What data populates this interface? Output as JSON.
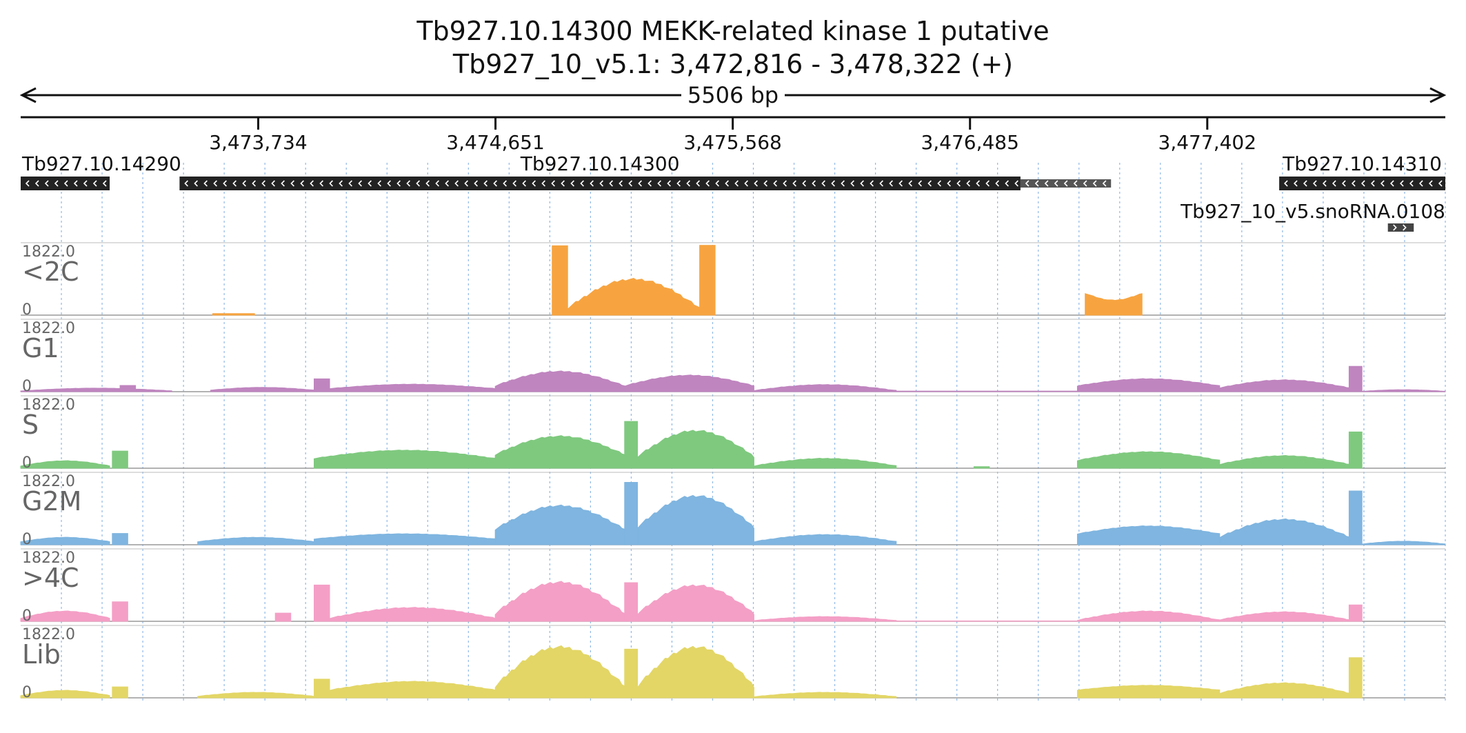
{
  "chart_data": {
    "type": "area",
    "title": "Tb927.10.14300  MEKK-related kinase 1  putative",
    "subtitle": "Tb927_10_v5.1: 3,472,816 - 3,478,322 (+)",
    "span_label": "5506 bp",
    "xlim": [
      3472816,
      3478322
    ],
    "ticks": [
      {
        "pos": 3473734,
        "label": "3,473,734"
      },
      {
        "pos": 3474651,
        "label": "3,474,651"
      },
      {
        "pos": 3475568,
        "label": "3,475,568"
      },
      {
        "pos": 3476485,
        "label": "3,476,485"
      },
      {
        "pos": 3477402,
        "label": "3,477,402"
      }
    ],
    "genes": [
      {
        "label": "Tb927.10.14290",
        "start": 3472816,
        "end": 3473160,
        "strand": "-",
        "row": 0,
        "label_anchor": "start",
        "color": "#222222"
      },
      {
        "label": "Tb927.10.14300",
        "start": 3473430,
        "end": 3476680,
        "strand": "-",
        "row": 0,
        "label_anchor": "middle",
        "color": "#222222"
      },
      {
        "label": "",
        "start": 3476680,
        "end": 3477030,
        "strand": "-",
        "row": 0,
        "label_anchor": "middle",
        "color": "#555555",
        "thin": true
      },
      {
        "label": "Tb927.10.14310",
        "start": 3477680,
        "end": 3478322,
        "strand": "-",
        "row": 0,
        "label_anchor": "middle",
        "color": "#222222"
      },
      {
        "label": "Tb927_10_v5.snoRNA.0108",
        "start": 3478100,
        "end": 3478200,
        "strand": "+",
        "row": 1,
        "label_anchor": "end",
        "color": "#444444"
      }
    ],
    "ylim": [
      0,
      1822
    ],
    "tracks": [
      {
        "name": "<2C",
        "max_label": "1822.0",
        "zero_label": "0",
        "color": "#f7a440",
        "segments": [
          {
            "start": 3473558,
            "end": 3473720,
            "shape": "flat",
            "low": 40,
            "high": 40
          },
          {
            "start": 3474870,
            "end": 3474930,
            "shape": "flat",
            "low": 1780,
            "high": 1780
          },
          {
            "start": 3474930,
            "end": 3475440,
            "shape": "arch",
            "low": 180,
            "high": 920
          },
          {
            "start": 3475440,
            "end": 3475500,
            "shape": "flat",
            "low": 1790,
            "high": 1790
          },
          {
            "start": 3476930,
            "end": 3477150,
            "shape": "notch",
            "low": 340,
            "high": 560
          }
        ]
      },
      {
        "name": "G1",
        "max_label": "1822.0",
        "zero_label": "0",
        "color": "#bf85bf",
        "segments": [
          {
            "start": 3472816,
            "end": 3473400,
            "shape": "arch",
            "low": 20,
            "high": 90
          },
          {
            "start": 3473200,
            "end": 3473260,
            "shape": "flat",
            "low": 160,
            "high": 160
          },
          {
            "start": 3473550,
            "end": 3473950,
            "shape": "arch",
            "low": 40,
            "high": 110
          },
          {
            "start": 3473950,
            "end": 3474010,
            "shape": "flat",
            "low": 330,
            "high": 330
          },
          {
            "start": 3474010,
            "end": 3474650,
            "shape": "arch",
            "low": 80,
            "high": 190
          },
          {
            "start": 3474650,
            "end": 3475150,
            "shape": "arch",
            "low": 150,
            "high": 520
          },
          {
            "start": 3475150,
            "end": 3475650,
            "shape": "arch",
            "low": 150,
            "high": 420
          },
          {
            "start": 3475650,
            "end": 3476200,
            "shape": "arch",
            "low": 30,
            "high": 180
          },
          {
            "start": 3476200,
            "end": 3476900,
            "shape": "flat",
            "low": 15,
            "high": 15
          },
          {
            "start": 3476900,
            "end": 3477450,
            "shape": "arch",
            "low": 150,
            "high": 330
          },
          {
            "start": 3477450,
            "end": 3477950,
            "shape": "arch",
            "low": 100,
            "high": 300
          },
          {
            "start": 3477950,
            "end": 3478000,
            "shape": "flat",
            "low": 650,
            "high": 650
          },
          {
            "start": 3478000,
            "end": 3478322,
            "shape": "arch",
            "low": 10,
            "high": 50
          }
        ]
      },
      {
        "name": "S",
        "max_label": "1822.0",
        "zero_label": "0",
        "color": "#7fc97f",
        "segments": [
          {
            "start": 3472816,
            "end": 3473160,
            "shape": "arch",
            "low": 60,
            "high": 190
          },
          {
            "start": 3473170,
            "end": 3473230,
            "shape": "flat",
            "low": 440,
            "high": 440
          },
          {
            "start": 3473950,
            "end": 3474650,
            "shape": "arch",
            "low": 250,
            "high": 460
          },
          {
            "start": 3474650,
            "end": 3475150,
            "shape": "arch",
            "low": 350,
            "high": 820
          },
          {
            "start": 3475150,
            "end": 3475200,
            "shape": "flat",
            "low": 1200,
            "high": 1200
          },
          {
            "start": 3475200,
            "end": 3475650,
            "shape": "arch",
            "low": 300,
            "high": 960
          },
          {
            "start": 3475650,
            "end": 3476200,
            "shape": "arch",
            "low": 60,
            "high": 250
          },
          {
            "start": 3476500,
            "end": 3476560,
            "shape": "flat",
            "low": 40,
            "high": 40
          },
          {
            "start": 3476900,
            "end": 3477450,
            "shape": "arch",
            "low": 200,
            "high": 420
          },
          {
            "start": 3477450,
            "end": 3477950,
            "shape": "arch",
            "low": 100,
            "high": 320
          },
          {
            "start": 3477950,
            "end": 3478000,
            "shape": "flat",
            "low": 930,
            "high": 930
          }
        ]
      },
      {
        "name": "G2M",
        "max_label": "1822.0",
        "zero_label": "0",
        "color": "#7fb5e0",
        "segments": [
          {
            "start": 3472816,
            "end": 3473160,
            "shape": "arch",
            "low": 80,
            "high": 190
          },
          {
            "start": 3473170,
            "end": 3473230,
            "shape": "flat",
            "low": 290,
            "high": 290
          },
          {
            "start": 3473500,
            "end": 3473950,
            "shape": "arch",
            "low": 80,
            "high": 190
          },
          {
            "start": 3473950,
            "end": 3474650,
            "shape": "arch",
            "low": 150,
            "high": 280
          },
          {
            "start": 3474650,
            "end": 3475150,
            "shape": "arch",
            "low": 400,
            "high": 1000
          },
          {
            "start": 3475150,
            "end": 3475200,
            "shape": "flat",
            "low": 1600,
            "high": 1600
          },
          {
            "start": 3475200,
            "end": 3475650,
            "shape": "arch",
            "low": 450,
            "high": 1250
          },
          {
            "start": 3475650,
            "end": 3476200,
            "shape": "arch",
            "low": 80,
            "high": 260
          },
          {
            "start": 3476900,
            "end": 3477450,
            "shape": "arch",
            "low": 280,
            "high": 480
          },
          {
            "start": 3477450,
            "end": 3477950,
            "shape": "arch",
            "low": 200,
            "high": 650
          },
          {
            "start": 3477950,
            "end": 3478000,
            "shape": "flat",
            "low": 1380,
            "high": 1380
          },
          {
            "start": 3478000,
            "end": 3478322,
            "shape": "arch",
            "low": 20,
            "high": 90
          }
        ]
      },
      {
        "name": ">4C",
        "max_label": "1822.0",
        "zero_label": "0",
        "color": "#f49fc6",
        "segments": [
          {
            "start": 3472816,
            "end": 3473160,
            "shape": "arch",
            "low": 80,
            "high": 260
          },
          {
            "start": 3473170,
            "end": 3473230,
            "shape": "flat",
            "low": 500,
            "high": 500
          },
          {
            "start": 3473800,
            "end": 3473860,
            "shape": "flat",
            "low": 210,
            "high": 210
          },
          {
            "start": 3473950,
            "end": 3474010,
            "shape": "flat",
            "low": 930,
            "high": 930
          },
          {
            "start": 3474010,
            "end": 3474650,
            "shape": "arch",
            "low": 80,
            "high": 350
          },
          {
            "start": 3474650,
            "end": 3475150,
            "shape": "arch",
            "low": 200,
            "high": 1000
          },
          {
            "start": 3475150,
            "end": 3475200,
            "shape": "flat",
            "low": 990,
            "high": 990
          },
          {
            "start": 3475200,
            "end": 3475650,
            "shape": "arch",
            "low": 200,
            "high": 920
          },
          {
            "start": 3475650,
            "end": 3476200,
            "shape": "arch",
            "low": 20,
            "high": 120
          },
          {
            "start": 3476200,
            "end": 3476900,
            "shape": "flat",
            "low": 10,
            "high": 10
          },
          {
            "start": 3476900,
            "end": 3477450,
            "shape": "arch",
            "low": 30,
            "high": 260
          },
          {
            "start": 3477450,
            "end": 3477950,
            "shape": "arch",
            "low": 40,
            "high": 240
          },
          {
            "start": 3477950,
            "end": 3478000,
            "shape": "flat",
            "low": 420,
            "high": 420
          }
        ]
      },
      {
        "name": "Lib",
        "max_label": "1822.0",
        "zero_label": "0",
        "color": "#e3d666",
        "segments": [
          {
            "start": 3472816,
            "end": 3473160,
            "shape": "arch",
            "low": 60,
            "high": 190
          },
          {
            "start": 3473170,
            "end": 3473230,
            "shape": "flat",
            "low": 280,
            "high": 280
          },
          {
            "start": 3473500,
            "end": 3473950,
            "shape": "arch",
            "low": 40,
            "high": 140
          },
          {
            "start": 3473950,
            "end": 3474010,
            "shape": "flat",
            "low": 480,
            "high": 480
          },
          {
            "start": 3474010,
            "end": 3474650,
            "shape": "arch",
            "low": 200,
            "high": 420
          },
          {
            "start": 3474650,
            "end": 3475150,
            "shape": "arch",
            "low": 300,
            "high": 1300
          },
          {
            "start": 3475150,
            "end": 3475200,
            "shape": "flat",
            "low": 1250,
            "high": 1250
          },
          {
            "start": 3475200,
            "end": 3475650,
            "shape": "arch",
            "low": 300,
            "high": 1300
          },
          {
            "start": 3475650,
            "end": 3476200,
            "shape": "arch",
            "low": 30,
            "high": 140
          },
          {
            "start": 3476900,
            "end": 3477450,
            "shape": "arch",
            "low": 200,
            "high": 320
          },
          {
            "start": 3477450,
            "end": 3477950,
            "shape": "arch",
            "low": 120,
            "high": 380
          },
          {
            "start": 3477950,
            "end": 3478000,
            "shape": "flat",
            "low": 1030,
            "high": 1030
          }
        ]
      }
    ],
    "grid": true
  }
}
